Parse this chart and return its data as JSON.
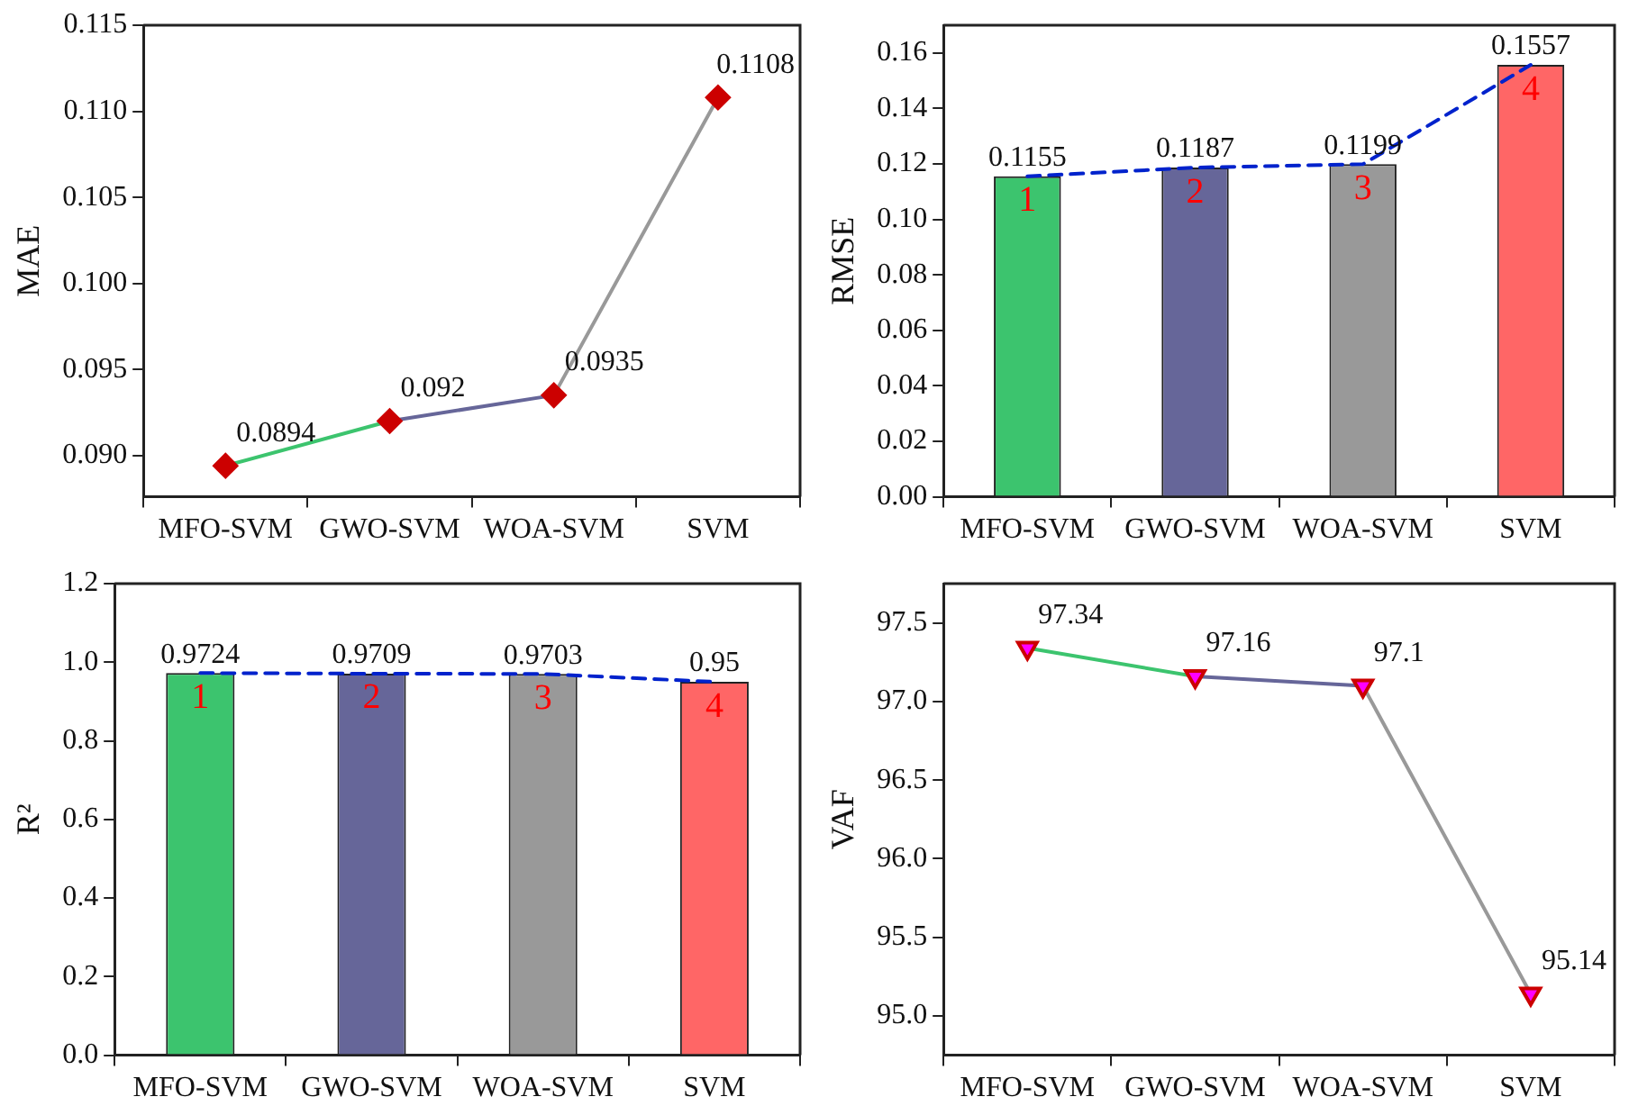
{
  "chart_data": [
    {
      "type": "line",
      "ylabel": "MAE",
      "categories": [
        "MFO-SVM",
        "GWO-SVM",
        "WOA-SVM",
        "SVM"
      ],
      "series": [
        {
          "color": "#3cc46e",
          "values": [
            0.0894,
            0.092,
            null,
            null
          ]
        },
        {
          "color": "#666699",
          "values": [
            null,
            0.092,
            0.0935,
            null
          ]
        },
        {
          "color": "#999999",
          "values": [
            null,
            null,
            0.0935,
            0.1108
          ]
        },
        {
          "type": "scatter",
          "color": "#cc0000",
          "marker": "diamond",
          "values": [
            0.0894,
            0.092,
            0.0935,
            0.1108
          ],
          "value_labels": [
            "0.0894",
            "0.092",
            "0.0935",
            "0.1108"
          ]
        }
      ],
      "ylim": [
        0.0876,
        0.115
      ],
      "yticks": [
        {
          "value": 0.09,
          "label": "0.090"
        },
        {
          "value": 0.095,
          "label": "0.095"
        },
        {
          "value": 0.1,
          "label": "0.100"
        },
        {
          "value": 0.105,
          "label": "0.105"
        },
        {
          "value": 0.11,
          "label": "0.110"
        },
        {
          "value": 0.115,
          "label": "0.115"
        }
      ],
      "marker": "none",
      "grid": false,
      "legend": false
    },
    {
      "type": "bar",
      "ylabel": "RMSE",
      "categories": [
        "MFO-SVM",
        "GWO-SVM",
        "WOA-SVM",
        "SVM"
      ],
      "series": [
        {
          "colors": [
            "#3cc46e",
            "#666699",
            "#999999",
            "#ff6666"
          ],
          "values": [
            0.1155,
            0.1187,
            0.1199,
            0.1557
          ],
          "value_labels": [
            "0.1155",
            "0.1187",
            "0.1199",
            "0.1557"
          ]
        },
        {
          "type": "line",
          "color": "#0022cc",
          "line_style": "dashed",
          "marker": "none",
          "values": [
            0.1155,
            0.1187,
            0.1199,
            0.1557
          ]
        }
      ],
      "ylim": [
        0,
        0.17
      ],
      "yticks": [
        {
          "value": 0,
          "label": "0.00"
        },
        {
          "value": 0.02,
          "label": "0.02"
        },
        {
          "value": 0.04,
          "label": "0.04"
        },
        {
          "value": 0.06,
          "label": "0.06"
        },
        {
          "value": 0.08,
          "label": "0.08"
        },
        {
          "value": 0.1,
          "label": "0.10"
        },
        {
          "value": 0.12,
          "label": "0.12"
        },
        {
          "value": 0.14,
          "label": "0.14"
        },
        {
          "value": 0.16,
          "label": "0.16"
        }
      ],
      "annotations": [
        "1",
        "2",
        "3",
        "4"
      ],
      "grid": false,
      "legend": false
    },
    {
      "type": "bar",
      "ylabel": "R²",
      "categories": [
        "MFO-SVM",
        "GWO-SVM",
        "WOA-SVM",
        "SVM"
      ],
      "series": [
        {
          "colors": [
            "#3cc46e",
            "#666699",
            "#999999",
            "#ff6666"
          ],
          "values": [
            0.9724,
            0.9709,
            0.9703,
            0.95
          ],
          "value_labels": [
            "0.9724",
            "0.9709",
            "0.9703",
            "0.95"
          ]
        },
        {
          "type": "line",
          "color": "#0022cc",
          "line_style": "dashed",
          "marker": "none",
          "values": [
            0.9724,
            0.9709,
            0.9703,
            0.95
          ]
        }
      ],
      "ylim": [
        0,
        1.2
      ],
      "yticks": [
        {
          "value": 0,
          "label": "0.0"
        },
        0.2,
        0.4,
        0.6,
        0.8,
        {
          "value": 1,
          "label": "1.0"
        },
        1.2
      ],
      "annotations": [
        "1",
        "2",
        "3",
        "4"
      ],
      "grid": false,
      "legend": false
    },
    {
      "type": "line",
      "ylabel": "VAF",
      "categories": [
        "MFO-SVM",
        "GWO-SVM",
        "WOA-SVM",
        "SVM"
      ],
      "series": [
        {
          "color": "#3cc46e",
          "values": [
            97.34,
            97.16,
            null,
            null
          ]
        },
        {
          "color": "#666699",
          "values": [
            null,
            97.16,
            97.1,
            null
          ]
        },
        {
          "color": "#999999",
          "values": [
            null,
            null,
            97.1,
            95.14
          ]
        },
        {
          "type": "scatter",
          "color": "#ff00ff",
          "marker": "triangle",
          "values": [
            97.34,
            97.16,
            97.1,
            95.14
          ],
          "value_labels": [
            "97.34",
            "97.16",
            "97.1",
            "95.14"
          ]
        }
      ],
      "ylim": [
        94.75,
        97.75
      ],
      "yticks": [
        {
          "value": 95,
          "label": "95.0"
        },
        95.5,
        {
          "value": 96,
          "label": "96.0"
        },
        96.5,
        {
          "value": 97,
          "label": "97.0"
        },
        97.5
      ],
      "marker": "none",
      "grid": false,
      "legend": false
    }
  ]
}
